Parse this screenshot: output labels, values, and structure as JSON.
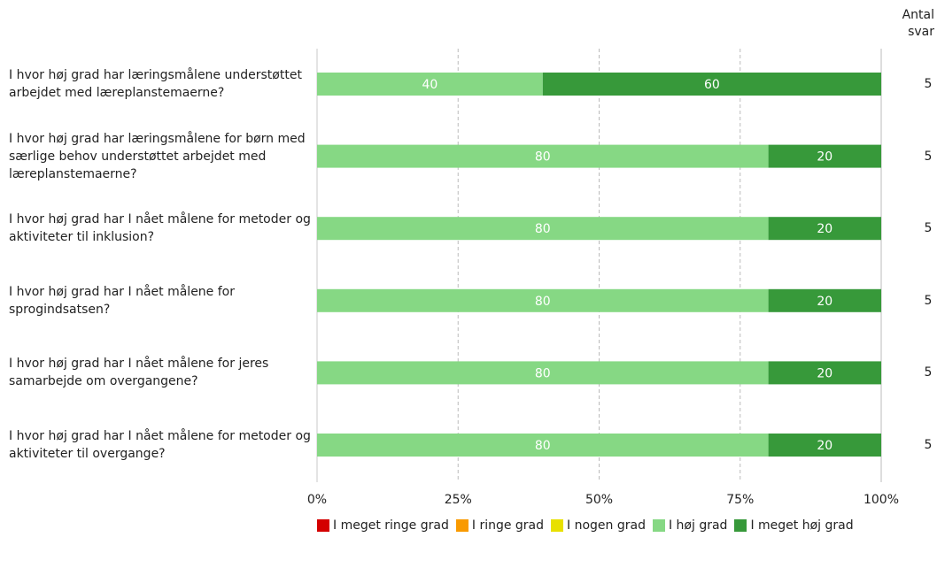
{
  "chart_data": {
    "type": "stacked_bar_horizontal",
    "categories": [
      "I hvor høj grad har læringsmålene understøttet arbejdet med læreplanstemaerne?",
      "I hvor høj grad har læringsmålene for børn med særlige behov understøttet arbejdet med læreplanstemaerne?",
      "I hvor høj grad har I nået målene for metoder og aktiviteter til inklusion?",
      "I hvor høj grad har I nået målene for sprogindsatsen?",
      "I hvor høj grad har I nået målene for jeres samarbejde om overgangene?",
      "I hvor høj grad har I nået målene for metoder og aktiviteter til overgange?"
    ],
    "series": [
      {
        "name": "I meget ringe grad",
        "color": "#d40000",
        "values": [
          0,
          0,
          0,
          0,
          0,
          0
        ]
      },
      {
        "name": "I ringe grad",
        "color": "#f99a00",
        "values": [
          0,
          0,
          0,
          0,
          0,
          0
        ]
      },
      {
        "name": "I nogen grad",
        "color": "#e8e000",
        "values": [
          0,
          0,
          0,
          0,
          0,
          0
        ]
      },
      {
        "name": "I høj grad",
        "color": "#86d884",
        "values": [
          40,
          80,
          80,
          80,
          80,
          80
        ]
      },
      {
        "name": "I meget høj grad",
        "color": "#37993a",
        "values": [
          60,
          20,
          20,
          20,
          20,
          20
        ]
      }
    ],
    "xlim": [
      0,
      100
    ],
    "xticks": [
      {
        "value": 0,
        "label": "0%"
      },
      {
        "value": 25,
        "label": "25%"
      },
      {
        "value": 50,
        "label": "50%"
      },
      {
        "value": 75,
        "label": "75%"
      },
      {
        "value": 100,
        "label": "100%"
      }
    ],
    "grid": true,
    "count_header": "Antal svar",
    "counts": [
      5,
      5,
      5,
      5,
      5,
      5
    ]
  }
}
